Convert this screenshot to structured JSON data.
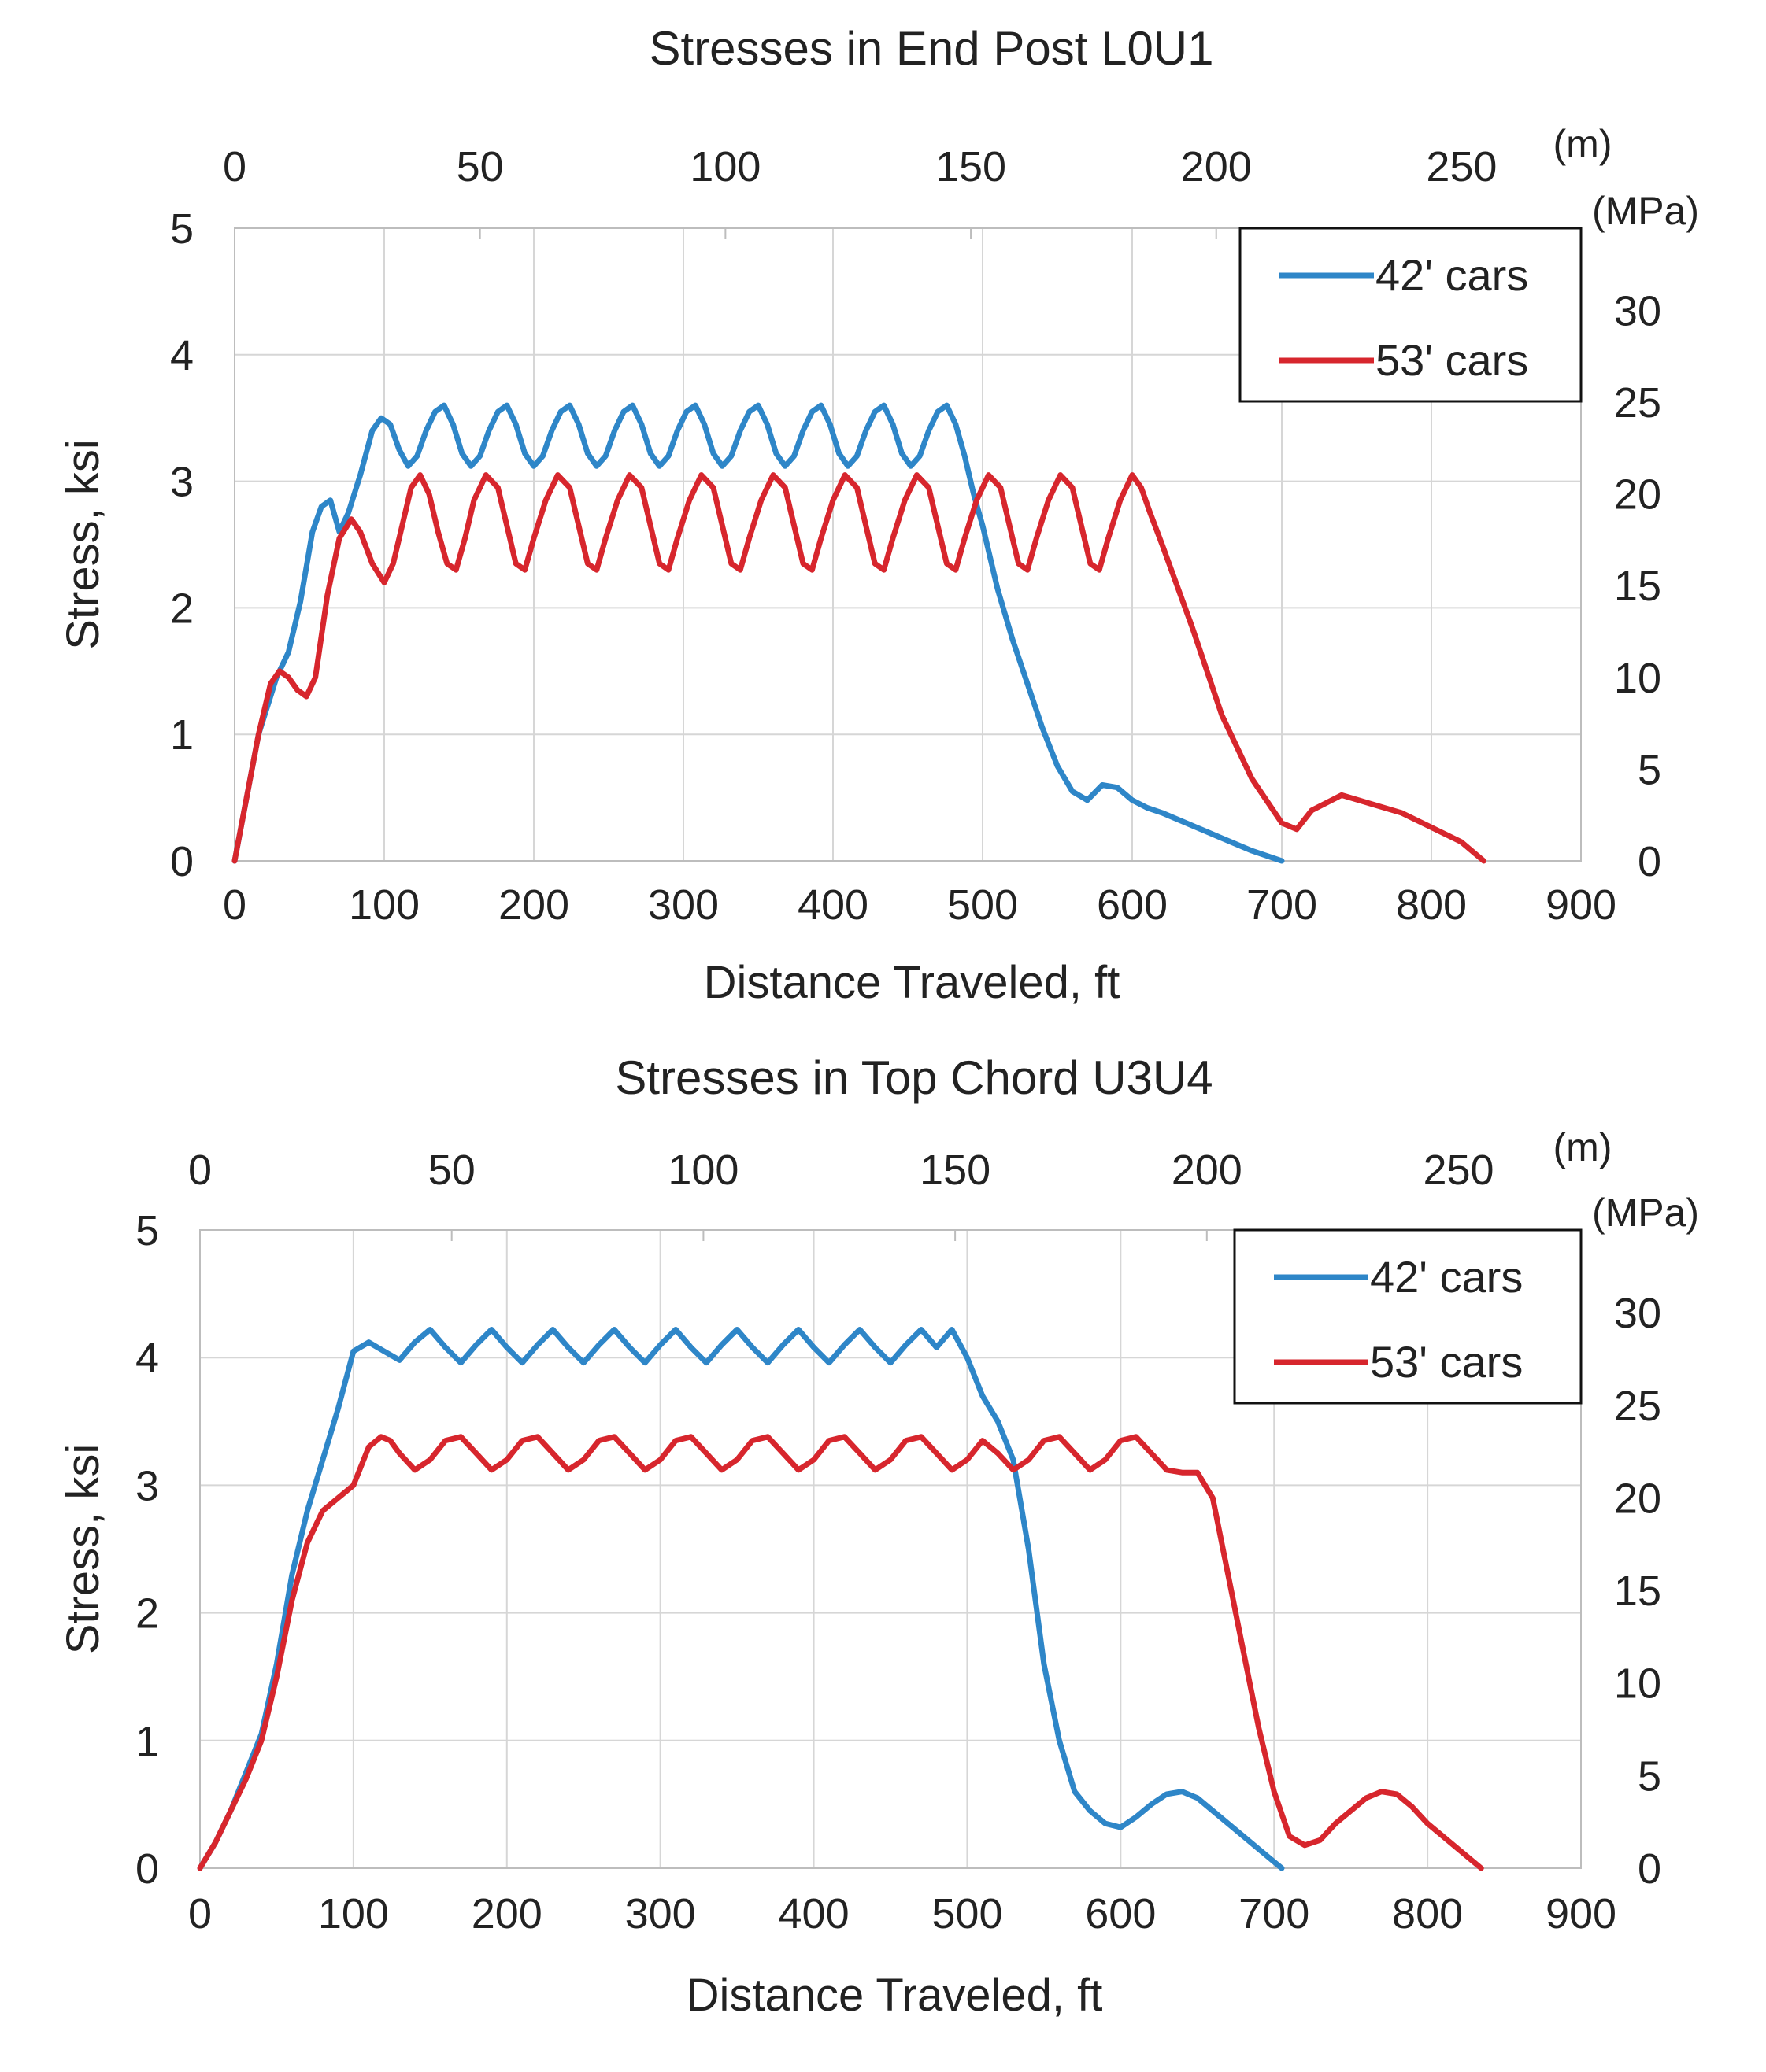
{
  "chart_data": [
    {
      "type": "line",
      "title": "Stresses in End Post L0U1",
      "xlabel": "Distance Traveled, ft",
      "ylabel": "Stress, ksi",
      "x2_unit": "(m)",
      "y2_unit": "(MPa)",
      "xlim": [
        0,
        900
      ],
      "ylim": [
        0,
        5
      ],
      "x2lim": [
        0,
        274.32
      ],
      "y2lim": [
        0,
        34.47
      ],
      "xticks": [
        "0",
        "100",
        "200",
        "300",
        "400",
        "500",
        "600",
        "700",
        "800",
        "900"
      ],
      "yticks": [
        "0",
        "1",
        "2",
        "3",
        "4",
        "5"
      ],
      "x2ticks": [
        "0",
        "50",
        "100",
        "150",
        "200",
        "250"
      ],
      "y2ticks": [
        "0",
        "5",
        "10",
        "15",
        "20",
        "25",
        "30"
      ],
      "grid": true,
      "legend_position": "top-right",
      "series": [
        {
          "name": "42' cars",
          "color": "#2E86C8",
          "x": [
            0,
            8,
            16,
            24,
            28,
            36,
            44,
            52,
            58,
            64,
            70,
            76,
            84,
            92,
            98,
            104,
            110,
            116,
            122,
            128,
            134,
            140,
            146,
            152,
            158,
            164,
            170,
            176,
            182,
            188,
            194,
            200,
            206,
            212,
            218,
            224,
            230,
            236,
            242,
            248,
            254,
            260,
            266,
            272,
            278,
            284,
            290,
            296,
            302,
            308,
            314,
            320,
            326,
            332,
            338,
            344,
            350,
            356,
            362,
            368,
            374,
            380,
            386,
            392,
            398,
            404,
            410,
            416,
            422,
            428,
            434,
            440,
            446,
            452,
            458,
            464,
            470,
            476,
            482,
            488,
            494,
            500,
            510,
            520,
            530,
            540,
            550,
            560,
            570,
            580,
            590,
            600,
            610,
            620,
            640,
            660,
            680,
            700
          ],
          "y": [
            0,
            0.5,
            1.0,
            1.3,
            1.45,
            1.65,
            2.05,
            2.6,
            2.8,
            2.85,
            2.6,
            2.75,
            3.05,
            3.4,
            3.5,
            3.45,
            3.25,
            3.12,
            3.2,
            3.4,
            3.55,
            3.6,
            3.45,
            3.22,
            3.12,
            3.2,
            3.4,
            3.55,
            3.6,
            3.45,
            3.22,
            3.12,
            3.2,
            3.4,
            3.55,
            3.6,
            3.45,
            3.22,
            3.12,
            3.2,
            3.4,
            3.55,
            3.6,
            3.45,
            3.22,
            3.12,
            3.2,
            3.4,
            3.55,
            3.6,
            3.45,
            3.22,
            3.12,
            3.2,
            3.4,
            3.55,
            3.6,
            3.45,
            3.22,
            3.12,
            3.2,
            3.4,
            3.55,
            3.6,
            3.45,
            3.22,
            3.12,
            3.2,
            3.4,
            3.55,
            3.6,
            3.45,
            3.22,
            3.12,
            3.2,
            3.4,
            3.55,
            3.6,
            3.45,
            3.2,
            2.9,
            2.65,
            2.15,
            1.75,
            1.4,
            1.05,
            0.75,
            0.55,
            0.48,
            0.6,
            0.58,
            0.48,
            0.42,
            0.38,
            0.28,
            0.18,
            0.08,
            0
          ]
        },
        {
          "name": "53' cars",
          "color": "#D7262D",
          "x": [
            0,
            8,
            16,
            24,
            30,
            36,
            42,
            48,
            54,
            62,
            70,
            78,
            84,
            92,
            100,
            106,
            112,
            118,
            124,
            130,
            136,
            142,
            148,
            154,
            160,
            168,
            176,
            182,
            188,
            194,
            200,
            208,
            216,
            224,
            230,
            236,
            242,
            248,
            256,
            264,
            272,
            278,
            284,
            290,
            296,
            304,
            312,
            320,
            326,
            332,
            338,
            344,
            352,
            360,
            368,
            374,
            380,
            386,
            392,
            400,
            408,
            416,
            422,
            428,
            434,
            440,
            448,
            456,
            464,
            470,
            476,
            482,
            488,
            496,
            504,
            512,
            518,
            524,
            530,
            536,
            544,
            552,
            560,
            566,
            572,
            578,
            584,
            592,
            600,
            606,
            612,
            620,
            640,
            660,
            680,
            700,
            710,
            720,
            740,
            780,
            820,
            835
          ],
          "y": [
            0,
            0.5,
            1.0,
            1.4,
            1.5,
            1.45,
            1.35,
            1.3,
            1.45,
            2.1,
            2.55,
            2.7,
            2.6,
            2.35,
            2.2,
            2.35,
            2.65,
            2.95,
            3.05,
            2.9,
            2.6,
            2.35,
            2.3,
            2.55,
            2.85,
            3.05,
            2.95,
            2.65,
            2.35,
            2.3,
            2.55,
            2.85,
            3.05,
            2.95,
            2.65,
            2.35,
            2.3,
            2.55,
            2.85,
            3.05,
            2.95,
            2.65,
            2.35,
            2.3,
            2.55,
            2.85,
            3.05,
            2.95,
            2.65,
            2.35,
            2.3,
            2.55,
            2.85,
            3.05,
            2.95,
            2.65,
            2.35,
            2.3,
            2.55,
            2.85,
            3.05,
            2.95,
            2.65,
            2.35,
            2.3,
            2.55,
            2.85,
            3.05,
            2.95,
            2.65,
            2.35,
            2.3,
            2.55,
            2.85,
            3.05,
            2.95,
            2.65,
            2.35,
            2.3,
            2.55,
            2.85,
            3.05,
            2.95,
            2.65,
            2.35,
            2.3,
            2.55,
            2.85,
            3.05,
            2.95,
            2.75,
            2.5,
            1.85,
            1.15,
            0.65,
            0.3,
            0.25,
            0.4,
            0.52,
            0.38,
            0.15,
            0
          ]
        }
      ]
    },
    {
      "type": "line",
      "title": "Stresses in Top Chord U3U4",
      "xlabel": "Distance Traveled, ft",
      "ylabel": "Stress, ksi",
      "x2_unit": "(m)",
      "y2_unit": "(MPa)",
      "xlim": [
        0,
        900
      ],
      "ylim": [
        0,
        5
      ],
      "x2lim": [
        0,
        274.32
      ],
      "y2lim": [
        0,
        34.47
      ],
      "xticks": [
        "0",
        "100",
        "200",
        "300",
        "400",
        "500",
        "600",
        "700",
        "800",
        "900"
      ],
      "yticks": [
        "0",
        "1",
        "2",
        "3",
        "4",
        "5"
      ],
      "x2ticks": [
        "0",
        "50",
        "100",
        "150",
        "200",
        "250"
      ],
      "y2ticks": [
        "0",
        "5",
        "10",
        "15",
        "20",
        "25",
        "30"
      ],
      "grid": true,
      "legend_position": "top-right",
      "series": [
        {
          "name": "42' cars",
          "color": "#2E86C8",
          "x": [
            0,
            10,
            20,
            30,
            40,
            50,
            60,
            70,
            80,
            90,
            100,
            110,
            120,
            130,
            140,
            150,
            160,
            170,
            180,
            190,
            200,
            210,
            220,
            230,
            240,
            250,
            260,
            270,
            280,
            290,
            300,
            310,
            320,
            330,
            340,
            350,
            360,
            370,
            380,
            390,
            400,
            410,
            420,
            430,
            440,
            450,
            460,
            470,
            480,
            490,
            500,
            510,
            520,
            530,
            540,
            550,
            560,
            570,
            580,
            590,
            600,
            610,
            620,
            630,
            640,
            650,
            660,
            680,
            700,
            705
          ],
          "y": [
            0,
            0.2,
            0.45,
            0.75,
            1.05,
            1.6,
            2.3,
            2.8,
            3.2,
            3.6,
            4.05,
            4.12,
            4.05,
            3.98,
            4.12,
            4.22,
            4.08,
            3.96,
            4.1,
            4.22,
            4.08,
            3.96,
            4.1,
            4.22,
            4.08,
            3.96,
            4.1,
            4.22,
            4.08,
            3.96,
            4.1,
            4.22,
            4.08,
            3.96,
            4.1,
            4.22,
            4.08,
            3.96,
            4.1,
            4.22,
            4.08,
            3.96,
            4.1,
            4.22,
            4.08,
            3.96,
            4.1,
            4.22,
            4.08,
            4.22,
            4.0,
            3.7,
            3.5,
            3.2,
            2.5,
            1.6,
            1.0,
            0.6,
            0.45,
            0.35,
            0.32,
            0.4,
            0.5,
            0.58,
            0.6,
            0.55,
            0.45,
            0.25,
            0.05,
            0
          ]
        },
        {
          "name": "53' cars",
          "color": "#D7262D",
          "x": [
            0,
            10,
            20,
            30,
            40,
            50,
            60,
            70,
            80,
            90,
            100,
            110,
            118,
            124,
            130,
            140,
            150,
            160,
            170,
            180,
            190,
            200,
            210,
            220,
            230,
            240,
            250,
            260,
            270,
            280,
            290,
            300,
            310,
            320,
            330,
            340,
            350,
            360,
            370,
            380,
            390,
            400,
            410,
            420,
            430,
            440,
            450,
            460,
            470,
            480,
            490,
            500,
            510,
            520,
            530,
            540,
            550,
            560,
            570,
            580,
            590,
            600,
            610,
            620,
            630,
            640,
            650,
            660,
            670,
            680,
            690,
            700,
            710,
            720,
            730,
            740,
            750,
            760,
            770,
            780,
            790,
            800,
            810,
            820,
            830,
            835
          ],
          "y": [
            0,
            0.2,
            0.45,
            0.7,
            1.0,
            1.5,
            2.1,
            2.55,
            2.8,
            2.9,
            3.0,
            3.3,
            3.38,
            3.35,
            3.25,
            3.12,
            3.2,
            3.35,
            3.38,
            3.25,
            3.12,
            3.2,
            3.35,
            3.38,
            3.25,
            3.12,
            3.2,
            3.35,
            3.38,
            3.25,
            3.12,
            3.2,
            3.35,
            3.38,
            3.25,
            3.12,
            3.2,
            3.35,
            3.38,
            3.25,
            3.12,
            3.2,
            3.35,
            3.38,
            3.25,
            3.12,
            3.2,
            3.35,
            3.38,
            3.25,
            3.12,
            3.2,
            3.35,
            3.25,
            3.12,
            3.2,
            3.35,
            3.38,
            3.25,
            3.12,
            3.2,
            3.35,
            3.38,
            3.25,
            3.12,
            3.1,
            3.1,
            2.9,
            2.3,
            1.7,
            1.1,
            0.6,
            0.25,
            0.18,
            0.22,
            0.35,
            0.45,
            0.55,
            0.6,
            0.58,
            0.48,
            0.35,
            0.25,
            0.15,
            0.05,
            0
          ]
        }
      ]
    }
  ]
}
